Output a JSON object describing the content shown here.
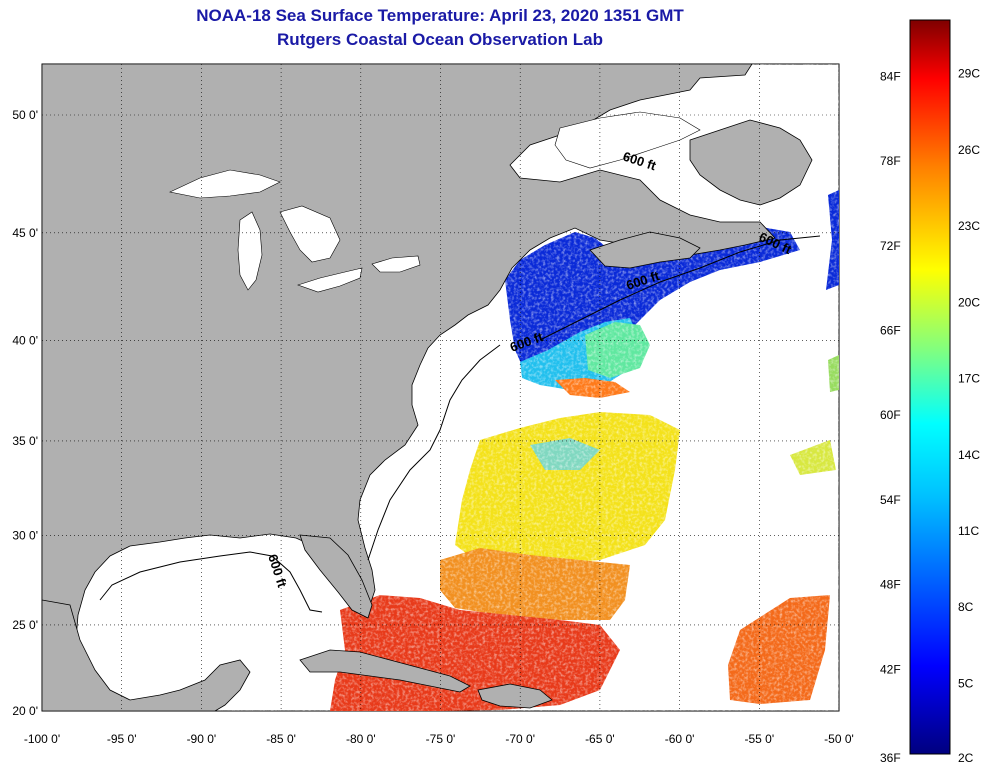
{
  "title": "NOAA-18 Sea Surface Temperature:  April 23, 2020 1351 GMT",
  "subtitle": "Rutgers Coastal Ocean Observation Lab",
  "map": {
    "lon_range": [
      -100,
      -50
    ],
    "lat_range": [
      20,
      52.5
    ],
    "x_ticks": [
      {
        "value": -100,
        "label": "-100 0'"
      },
      {
        "value": -95,
        "label": "-95 0'"
      },
      {
        "value": -90,
        "label": "-90 0'"
      },
      {
        "value": -85,
        "label": "-85 0'"
      },
      {
        "value": -80,
        "label": "-80 0'"
      },
      {
        "value": -75,
        "label": "-75 0'"
      },
      {
        "value": -70,
        "label": "-70 0'"
      },
      {
        "value": -65,
        "label": "-65 0'"
      },
      {
        "value": -60,
        "label": "-60 0'"
      },
      {
        "value": -55,
        "label": "-55 0'"
      },
      {
        "value": -50,
        "label": "-50 0'"
      }
    ],
    "y_ticks": [
      {
        "value": 50,
        "label": "50 0'"
      },
      {
        "value": 45,
        "label": "45 0'"
      },
      {
        "value": 40,
        "label": "40 0'"
      },
      {
        "value": 35,
        "label": "35 0'"
      },
      {
        "value": 30,
        "label": "30 0'"
      },
      {
        "value": 25,
        "label": "25 0'"
      },
      {
        "value": 20,
        "label": "20 0'"
      }
    ],
    "contour_label": "600 ft",
    "land_color": "#b0b0b0",
    "water_color": "#ffffff",
    "grid": "dotted"
  },
  "colorbar": {
    "fahrenheit": [
      {
        "value": 84,
        "label": "84F"
      },
      {
        "value": 78,
        "label": "78F"
      },
      {
        "value": 72,
        "label": "72F"
      },
      {
        "value": 66,
        "label": "66F"
      },
      {
        "value": 60,
        "label": "60F"
      },
      {
        "value": 54,
        "label": "54F"
      },
      {
        "value": 48,
        "label": "48F"
      },
      {
        "value": 42,
        "label": "42F"
      },
      {
        "value": 36,
        "label": "36F"
      }
    ],
    "celsius": [
      {
        "value": 29,
        "label": "29C"
      },
      {
        "value": 26,
        "label": "26C"
      },
      {
        "value": 23,
        "label": "23C"
      },
      {
        "value": 20,
        "label": "20C"
      },
      {
        "value": 17,
        "label": "17C"
      },
      {
        "value": 14,
        "label": "14C"
      },
      {
        "value": 11,
        "label": "11C"
      },
      {
        "value": 8,
        "label": "8C"
      },
      {
        "value": 5,
        "label": "5C"
      },
      {
        "value": 2,
        "label": "2C"
      }
    ],
    "gradient_colors": [
      "#00007f",
      "#0000ff",
      "#0080ff",
      "#00ffff",
      "#80ff80",
      "#ffff00",
      "#ff8000",
      "#ff0000",
      "#7f0000"
    ]
  }
}
